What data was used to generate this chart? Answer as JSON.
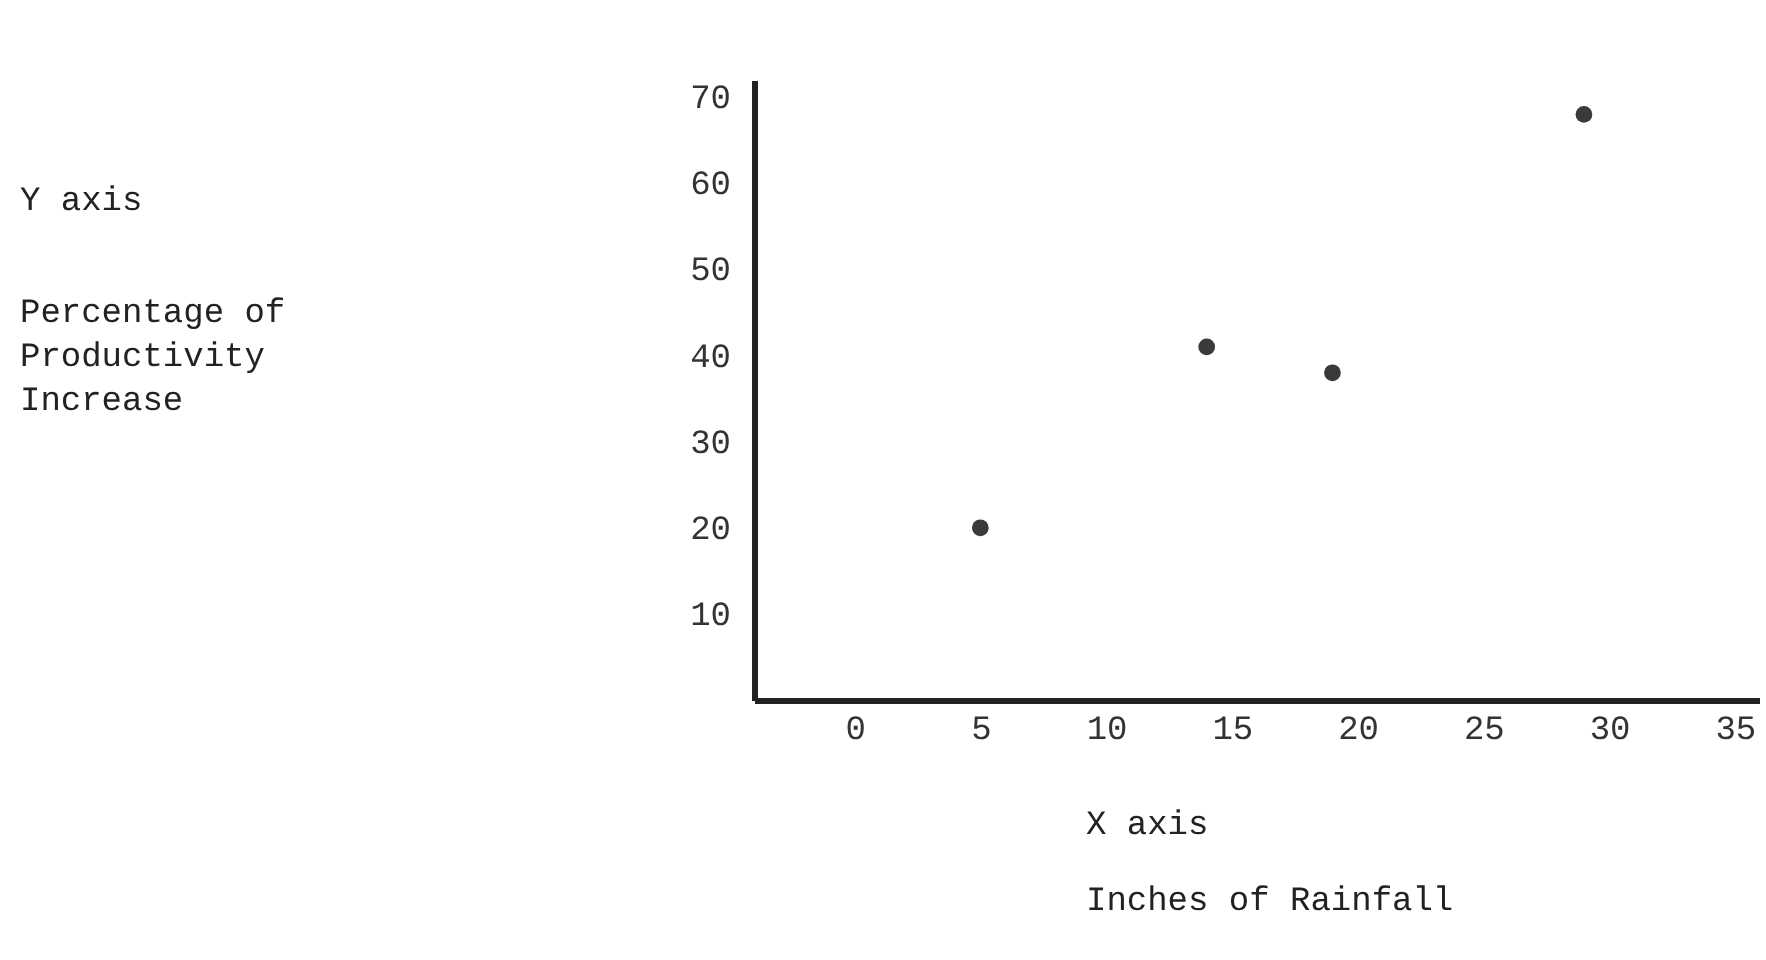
{
  "chart_data": {
    "type": "scatter",
    "x": [
      5,
      14,
      19,
      29
    ],
    "values": [
      20,
      41,
      38,
      68
    ],
    "color": "#3a3a3a",
    "marker": "circle",
    "xlabel": "X axis",
    "annotations": [
      "Y axis",
      "Percentage of Productivity Increase",
      "Inches of Rainfall"
    ],
    "xlim": [
      -4,
      36
    ],
    "xticks": [
      0,
      5,
      10,
      15,
      20,
      25,
      30,
      35
    ],
    "ylim": [
      0,
      72
    ],
    "yticks": [
      10,
      20,
      30,
      40,
      50,
      60,
      70
    ],
    "grid": false
  }
}
